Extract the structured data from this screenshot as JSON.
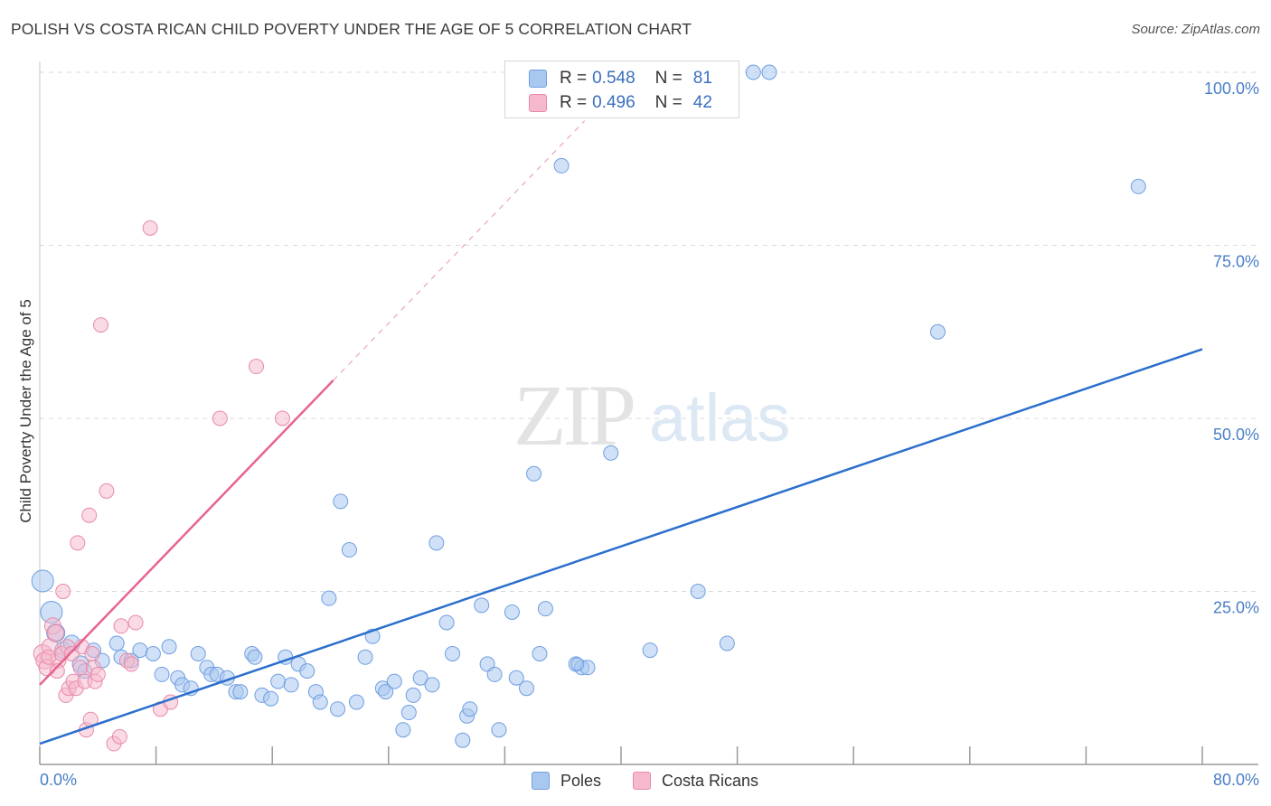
{
  "title": "POLISH VS COSTA RICAN CHILD POVERTY UNDER THE AGE OF 5 CORRELATION CHART",
  "source": "Source: ZipAtlas.com",
  "watermark": {
    "zip": "ZIP",
    "atlas": "atlas"
  },
  "legend": {
    "poles": {
      "r_label": "R =",
      "r_value": "0.548",
      "n_label": "N =",
      "n_value": "81"
    },
    "costa": {
      "r_label": "R =",
      "r_value": "0.496",
      "n_label": "N =",
      "n_value": "42"
    }
  },
  "bottom_legend": {
    "poles": "Poles",
    "costa": "Costa Ricans"
  },
  "colors": {
    "poles_fill": "#a9c8f0",
    "poles_stroke": "#6e9ee0",
    "poles_line": "#2b6fcc",
    "costa_fill": "#f5b8cc",
    "costa_stroke": "#e88aa8",
    "costa_line": "#e8648e",
    "grid": "#d9d9d9",
    "tick_text": "#4a7fc7"
  },
  "chart_data": {
    "type": "scatter",
    "title": "POLISH VS COSTA RICAN CHILD POVERTY UNDER THE AGE OF 5 CORRELATION CHART",
    "xlabel": "",
    "ylabel": "Child Poverty Under the Age of 5",
    "xlim": [
      0,
      80
    ],
    "ylim": [
      0,
      100
    ],
    "x_tick_labels": [
      "0.0%",
      "80.0%"
    ],
    "y_ticks": [
      25,
      50,
      75,
      100
    ],
    "y_tick_labels": [
      "25.0%",
      "50.0%",
      "75.0%",
      "100.0%"
    ],
    "legend_position": "top-center",
    "series": [
      {
        "name": "Poles",
        "r": 0.548,
        "n": 81,
        "trend": {
          "x": [
            0,
            80
          ],
          "y": [
            3.0,
            60.0
          ]
        },
        "points": [
          [
            0.2,
            26.5,
            12
          ],
          [
            0.8,
            22,
            12
          ],
          [
            1.1,
            19,
            10
          ],
          [
            1.6,
            16.5,
            9
          ],
          [
            2.2,
            17.5,
            9
          ],
          [
            2.8,
            14.5,
            9
          ],
          [
            3.1,
            13.5,
            8
          ],
          [
            3.7,
            16.5,
            8
          ],
          [
            4.3,
            15,
            8
          ],
          [
            5.3,
            17.5,
            8
          ],
          [
            5.6,
            15.5,
            8
          ],
          [
            6.3,
            15,
            8
          ],
          [
            6.9,
            16.5,
            8
          ],
          [
            7.8,
            16,
            8
          ],
          [
            8.4,
            13,
            8
          ],
          [
            8.9,
            17,
            8
          ],
          [
            9.5,
            12.5,
            8
          ],
          [
            9.8,
            11.5,
            8
          ],
          [
            10.4,
            11,
            8
          ],
          [
            10.9,
            16,
            8
          ],
          [
            11.5,
            14,
            8
          ],
          [
            11.8,
            13,
            8
          ],
          [
            12.2,
            13,
            8
          ],
          [
            12.9,
            12.5,
            8
          ],
          [
            13.5,
            10.5,
            8
          ],
          [
            13.8,
            10.5,
            8
          ],
          [
            14.6,
            16,
            8
          ],
          [
            14.8,
            15.5,
            8
          ],
          [
            15.3,
            10,
            8
          ],
          [
            15.9,
            9.5,
            8
          ],
          [
            16.4,
            12,
            8
          ],
          [
            16.9,
            15.5,
            8
          ],
          [
            17.3,
            11.5,
            8
          ],
          [
            17.8,
            14.5,
            8
          ],
          [
            18.4,
            13.5,
            8
          ],
          [
            19.0,
            10.5,
            8
          ],
          [
            19.3,
            9,
            8
          ],
          [
            19.9,
            24,
            8
          ],
          [
            20.5,
            8,
            8
          ],
          [
            20.7,
            38,
            8
          ],
          [
            21.3,
            31,
            8
          ],
          [
            21.8,
            9,
            8
          ],
          [
            22.4,
            15.5,
            8
          ],
          [
            22.9,
            18.5,
            8
          ],
          [
            23.6,
            11,
            8
          ],
          [
            23.8,
            10.5,
            8
          ],
          [
            24.4,
            12,
            8
          ],
          [
            25.0,
            5,
            8
          ],
          [
            25.4,
            7.5,
            8
          ],
          [
            25.7,
            10,
            8
          ],
          [
            26.2,
            12.5,
            8
          ],
          [
            27.0,
            11.5,
            8
          ],
          [
            27.3,
            32,
            8
          ],
          [
            28.0,
            20.5,
            8
          ],
          [
            28.4,
            16,
            8
          ],
          [
            29.1,
            3.5,
            8
          ],
          [
            29.4,
            7,
            8
          ],
          [
            29.6,
            8,
            8
          ],
          [
            30.4,
            23,
            8
          ],
          [
            30.8,
            14.5,
            8
          ],
          [
            31.3,
            13,
            8
          ],
          [
            31.6,
            5,
            8
          ],
          [
            32.5,
            22,
            8
          ],
          [
            32.8,
            12.5,
            8
          ],
          [
            33.5,
            11,
            8
          ],
          [
            34.0,
            42,
            8
          ],
          [
            34.4,
            16,
            8
          ],
          [
            34.8,
            22.5,
            8
          ],
          [
            35.9,
            86.5,
            8
          ],
          [
            36.9,
            14.5,
            8
          ],
          [
            37.3,
            14,
            8
          ],
          [
            37.7,
            14,
            8
          ],
          [
            39.3,
            45,
            8
          ],
          [
            42.0,
            16.5,
            8
          ],
          [
            45.3,
            25,
            8
          ],
          [
            47.3,
            17.5,
            8
          ],
          [
            49.1,
            100,
            8
          ],
          [
            50.2,
            100,
            8
          ],
          [
            61.8,
            62.5,
            8
          ],
          [
            75.6,
            83.5,
            8
          ],
          [
            37.0,
            14.5,
            7
          ]
        ]
      },
      {
        "name": "Costa Ricans",
        "r": 0.496,
        "n": 42,
        "trend": {
          "x": [
            0,
            20.2
          ],
          "y": [
            11.5,
            55.5
          ]
        },
        "trend_extension": {
          "x": [
            20.2,
            37.5
          ],
          "y": [
            55.5,
            93.0
          ]
        },
        "points": [
          [
            0.2,
            16,
            10
          ],
          [
            0.3,
            15,
            9
          ],
          [
            0.5,
            14,
            9
          ],
          [
            0.7,
            17,
            9
          ],
          [
            0.9,
            20,
            9
          ],
          [
            1.1,
            19,
            9
          ],
          [
            1.3,
            15,
            8
          ],
          [
            1.5,
            16,
            8
          ],
          [
            1.6,
            25,
            8
          ],
          [
            1.8,
            10,
            8
          ],
          [
            1.9,
            17,
            8
          ],
          [
            2.0,
            11,
            8
          ],
          [
            2.2,
            16,
            8
          ],
          [
            2.3,
            12,
            8
          ],
          [
            2.5,
            11,
            8
          ],
          [
            2.6,
            32,
            8
          ],
          [
            2.8,
            14,
            8
          ],
          [
            2.9,
            17,
            8
          ],
          [
            3.1,
            12,
            8
          ],
          [
            3.2,
            5,
            8
          ],
          [
            3.4,
            36,
            8
          ],
          [
            3.5,
            6.5,
            8
          ],
          [
            3.6,
            16,
            8
          ],
          [
            3.7,
            14,
            8
          ],
          [
            3.8,
            12,
            8
          ],
          [
            4.0,
            13,
            8
          ],
          [
            4.2,
            63.5,
            8
          ],
          [
            4.6,
            39.5,
            8
          ],
          [
            5.1,
            3,
            8
          ],
          [
            5.5,
            4,
            8
          ],
          [
            5.6,
            20,
            8
          ],
          [
            6.0,
            15,
            8
          ],
          [
            6.3,
            14.5,
            8
          ],
          [
            6.6,
            20.5,
            8
          ],
          [
            7.6,
            77.5,
            8
          ],
          [
            8.3,
            8,
            8
          ],
          [
            9.0,
            9,
            8
          ],
          [
            12.4,
            50,
            8
          ],
          [
            14.9,
            57.5,
            8
          ],
          [
            16.7,
            50,
            8
          ],
          [
            0.6,
            15.5,
            8
          ],
          [
            1.2,
            13.5,
            8
          ]
        ]
      }
    ]
  }
}
